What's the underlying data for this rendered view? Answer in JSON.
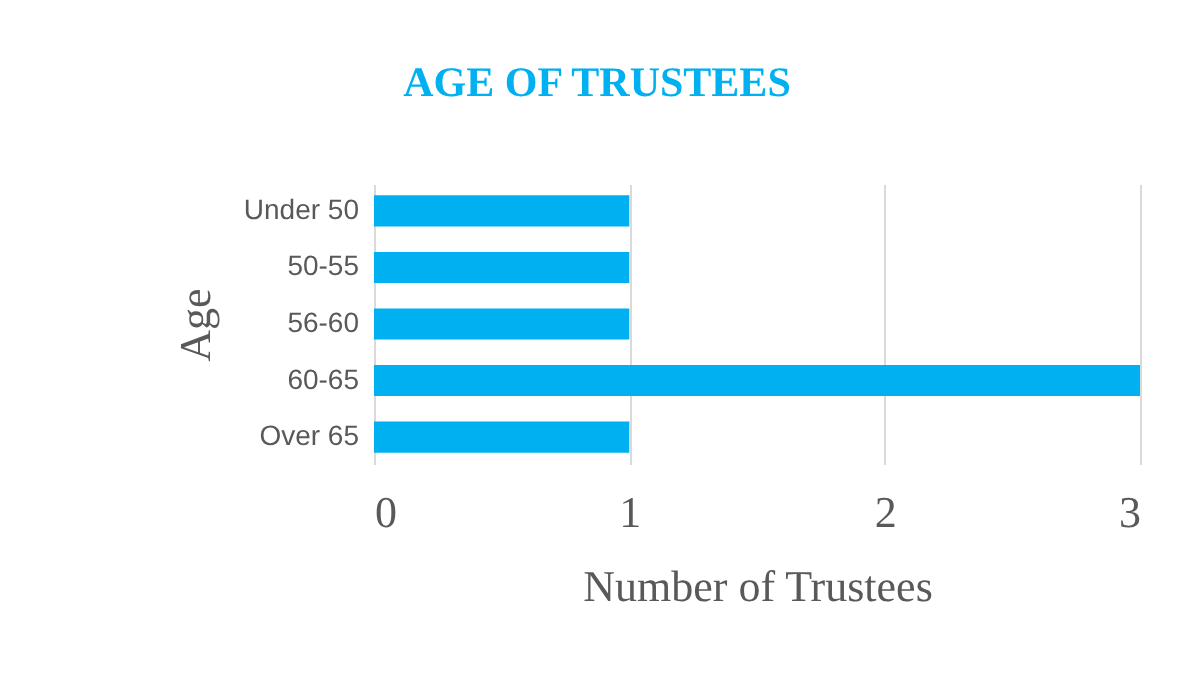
{
  "chart_data": {
    "type": "bar",
    "orientation": "horizontal",
    "title": "AGE OF TRUSTEES",
    "xlabel": "Number of Trustees",
    "ylabel": "Age",
    "categories": [
      "Under 50",
      "50-55",
      "56-60",
      "60-65",
      "Over 65"
    ],
    "values": [
      1,
      1,
      1,
      3,
      1
    ],
    "color": "#00b0f0",
    "xlim": [
      0,
      3
    ],
    "xticks": [
      0,
      1,
      2,
      3
    ],
    "grid": "x"
  }
}
